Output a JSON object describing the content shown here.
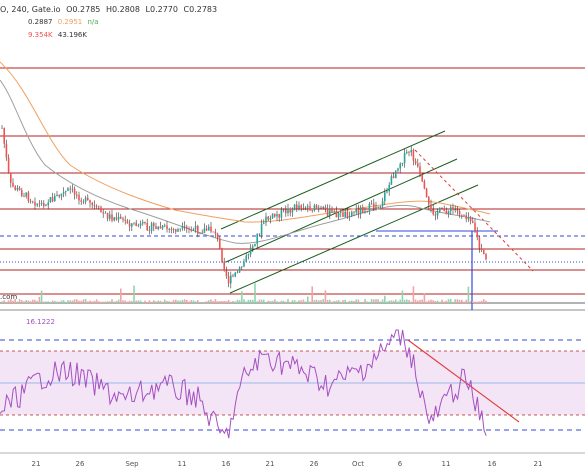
{
  "header": {
    "symbol_text": "O, 240, Gate.io",
    "ohlc": [
      "O0.2785",
      "H0.2808",
      "L0.2770",
      "C0.2783"
    ],
    "ma_values": [
      "0.2887",
      "0.2951",
      "n/a"
    ],
    "vol_values": [
      "9.354K",
      "43.196K"
    ],
    "vol_label": ".com"
  },
  "rsi_panel": {
    "value": "16.1222"
  },
  "x_axis": {
    "ticks": [
      "21",
      "26",
      "Sep",
      "11",
      "16",
      "21",
      "26",
      "Oct",
      "6",
      "11",
      "16",
      "21"
    ]
  },
  "colors": {
    "up": "#26a69a",
    "down": "#ef5350",
    "wick": "#333333",
    "hline": "#b22222",
    "channel": "#1b5e20",
    "blue": "#3548d8",
    "rsi_line": "#a54fc2",
    "rsi_fill": "#f3e5f5",
    "ma_orange": "#f0a060",
    "ma_gray": "#9e9e9e"
  }
}
